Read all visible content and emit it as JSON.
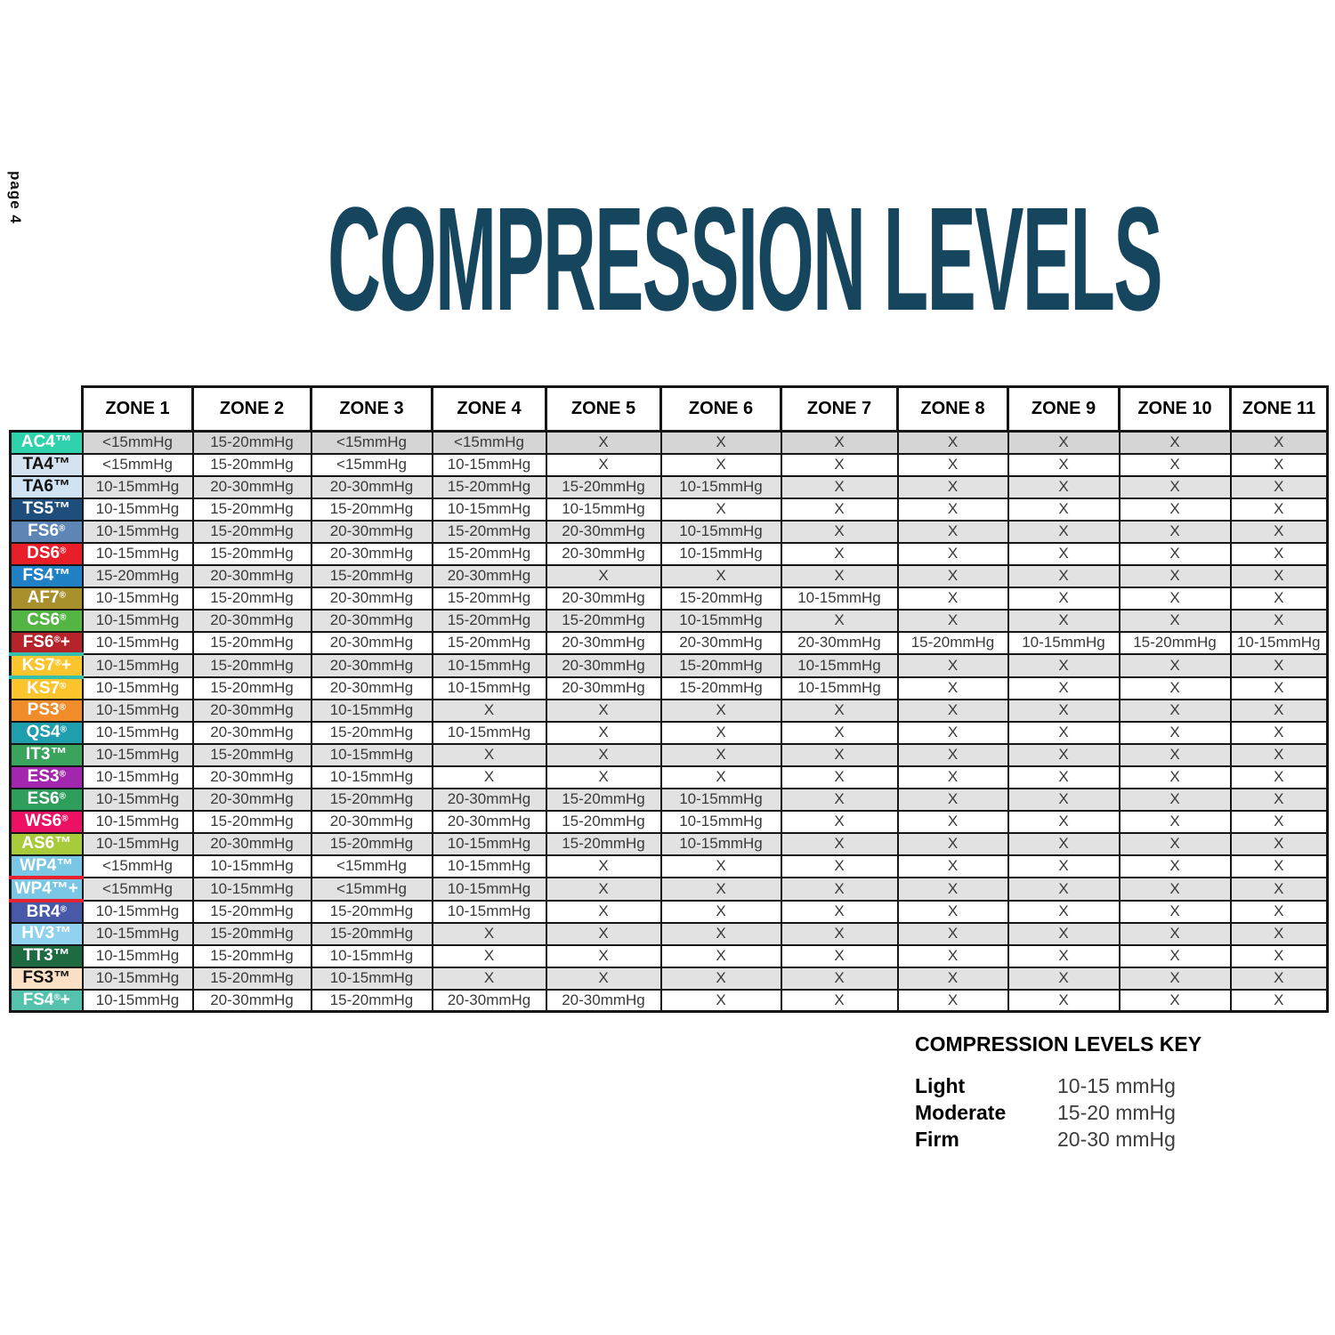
{
  "page_label": "page 4",
  "title": "COMPRESSION LEVELS",
  "colors": {
    "title": "#16455e",
    "table_border": "#161616",
    "stripe": "#e2e2e2",
    "stripe_first_row": "#d5d5d5",
    "divider_red": "#e8212e",
    "divider_teal": "#35c0ad"
  },
  "table": {
    "zone_headers": [
      "ZONE 1",
      "ZONE 2",
      "ZONE 3",
      "ZONE 4",
      "ZONE 5",
      "ZONE 6",
      "ZONE 7",
      "ZONE 8",
      "ZONE 9",
      "ZONE 10",
      "ZONE 11"
    ],
    "rows": [
      {
        "label": "AC4™",
        "bg": "#2ed3ad",
        "fg": "#ffffff",
        "values": [
          "<15mmHg",
          "15-20mmHg",
          "<15mmHg",
          "<15mmHg",
          "X",
          "X",
          "X",
          "X",
          "X",
          "X",
          "X"
        ]
      },
      {
        "label": "TA4™",
        "bg": "#d4e3ef",
        "fg": "#111111",
        "values": [
          "<15mmHg",
          "15-20mmHg",
          "<15mmHg",
          "10-15mmHg",
          "X",
          "X",
          "X",
          "X",
          "X",
          "X",
          "X"
        ]
      },
      {
        "label": "TA6™",
        "bg": "#cfe3f2",
        "fg": "#111111",
        "values": [
          "10-15mmHg",
          "20-30mmHg",
          "20-30mmHg",
          "15-20mmHg",
          "15-20mmHg",
          "10-15mmHg",
          "X",
          "X",
          "X",
          "X",
          "X"
        ]
      },
      {
        "label": "TS5™",
        "bg": "#1d4e7c",
        "fg": "#ffffff",
        "values": [
          "10-15mmHg",
          "15-20mmHg",
          "15-20mmHg",
          "10-15mmHg",
          "10-15mmHg",
          "X",
          "X",
          "X",
          "X",
          "X",
          "X"
        ]
      },
      {
        "label": "FS6®",
        "bg": "#5d85b6",
        "fg": "#ffffff",
        "values": [
          "10-15mmHg",
          "15-20mmHg",
          "20-30mmHg",
          "15-20mmHg",
          "20-30mmHg",
          "10-15mmHg",
          "X",
          "X",
          "X",
          "X",
          "X"
        ]
      },
      {
        "label": "DS6®",
        "bg": "#e81e29",
        "fg": "#ffffff",
        "values": [
          "10-15mmHg",
          "15-20mmHg",
          "20-30mmHg",
          "15-20mmHg",
          "20-30mmHg",
          "10-15mmHg",
          "X",
          "X",
          "X",
          "X",
          "X"
        ]
      },
      {
        "label": "FS4™",
        "bg": "#2280c4",
        "fg": "#ffffff",
        "values": [
          "15-20mmHg",
          "20-30mmHg",
          "15-20mmHg",
          "20-30mmHg",
          "X",
          "X",
          "X",
          "X",
          "X",
          "X",
          "X"
        ]
      },
      {
        "label": "AF7®",
        "bg": "#a8912c",
        "fg": "#ffffff",
        "values": [
          "10-15mmHg",
          "15-20mmHg",
          "20-30mmHg",
          "15-20mmHg",
          "20-30mmHg",
          "15-20mmHg",
          "10-15mmHg",
          "X",
          "X",
          "X",
          "X"
        ]
      },
      {
        "label": "CS6®",
        "bg": "#54b545",
        "fg": "#ffffff",
        "values": [
          "10-15mmHg",
          "20-30mmHg",
          "20-30mmHg",
          "15-20mmHg",
          "15-20mmHg",
          "10-15mmHg",
          "X",
          "X",
          "X",
          "X",
          "X"
        ]
      },
      {
        "label": "FS6®+",
        "bg": "#b5232b",
        "fg": "#ffffff",
        "values": [
          "10-15mmHg",
          "15-20mmHg",
          "20-30mmHg",
          "15-20mmHg",
          "20-30mmHg",
          "20-30mmHg",
          "20-30mmHg",
          "15-20mmHg",
          "10-15mmHg",
          "15-20mmHg",
          "10-15mmHg"
        ]
      },
      {
        "label": "KS7®+",
        "bg": "#fcc52d",
        "fg": "#ffffff",
        "divider_top": "#35c0ad",
        "divider_bottom": "#35c0ad",
        "values": [
          "10-15mmHg",
          "15-20mmHg",
          "20-30mmHg",
          "10-15mmHg",
          "20-30mmHg",
          "15-20mmHg",
          "10-15mmHg",
          "X",
          "X",
          "X",
          "X"
        ]
      },
      {
        "label": "KS7®",
        "bg": "#fcc52d",
        "fg": "#ffffff",
        "values": [
          "10-15mmHg",
          "15-20mmHg",
          "20-30mmHg",
          "10-15mmHg",
          "20-30mmHg",
          "15-20mmHg",
          "10-15mmHg",
          "X",
          "X",
          "X",
          "X"
        ]
      },
      {
        "label": "PS3®",
        "bg": "#f08d2a",
        "fg": "#ffffff",
        "values": [
          "10-15mmHg",
          "20-30mmHg",
          "10-15mmHg",
          "X",
          "X",
          "X",
          "X",
          "X",
          "X",
          "X",
          "X"
        ]
      },
      {
        "label": "QS4®",
        "bg": "#1f9fad",
        "fg": "#ffffff",
        "values": [
          "10-15mmHg",
          "20-30mmHg",
          "15-20mmHg",
          "10-15mmHg",
          "X",
          "X",
          "X",
          "X",
          "X",
          "X",
          "X"
        ]
      },
      {
        "label": "IT3™",
        "bg": "#3aa45c",
        "fg": "#ffffff",
        "values": [
          "10-15mmHg",
          "15-20mmHg",
          "10-15mmHg",
          "X",
          "X",
          "X",
          "X",
          "X",
          "X",
          "X",
          "X"
        ]
      },
      {
        "label": "ES3®",
        "bg": "#a327ae",
        "fg": "#ffffff",
        "values": [
          "10-15mmHg",
          "20-30mmHg",
          "10-15mmHg",
          "X",
          "X",
          "X",
          "X",
          "X",
          "X",
          "X",
          "X"
        ]
      },
      {
        "label": "ES6®",
        "bg": "#2f9e5c",
        "fg": "#ffffff",
        "values": [
          "10-15mmHg",
          "20-30mmHg",
          "15-20mmHg",
          "20-30mmHg",
          "15-20mmHg",
          "10-15mmHg",
          "X",
          "X",
          "X",
          "X",
          "X"
        ]
      },
      {
        "label": "WS6®",
        "bg": "#ed1164",
        "fg": "#ffffff",
        "values": [
          "10-15mmHg",
          "15-20mmHg",
          "20-30mmHg",
          "20-30mmHg",
          "15-20mmHg",
          "10-15mmHg",
          "X",
          "X",
          "X",
          "X",
          "X"
        ]
      },
      {
        "label": "AS6™",
        "bg": "#a7cb3b",
        "fg": "#ffffff",
        "values": [
          "10-15mmHg",
          "20-30mmHg",
          "15-20mmHg",
          "10-15mmHg",
          "15-20mmHg",
          "10-15mmHg",
          "X",
          "X",
          "X",
          "X",
          "X"
        ]
      },
      {
        "label": "WP4™",
        "bg": "#79c7e4",
        "fg": "#ffffff",
        "divider_bottom": "#e8212e",
        "values": [
          "<15mmHg",
          "10-15mmHg",
          "<15mmHg",
          "10-15mmHg",
          "X",
          "X",
          "X",
          "X",
          "X",
          "X",
          "X"
        ]
      },
      {
        "label": "WP4™+",
        "bg": "#79c7e4",
        "fg": "#ffffff",
        "divider_bottom": "#e8212e",
        "values": [
          "<15mmHg",
          "10-15mmHg",
          "<15mmHg",
          "10-15mmHg",
          "X",
          "X",
          "X",
          "X",
          "X",
          "X",
          "X"
        ]
      },
      {
        "label": "BR4®",
        "bg": "#4759a8",
        "fg": "#ffffff",
        "values": [
          "10-15mmHg",
          "15-20mmHg",
          "15-20mmHg",
          "10-15mmHg",
          "X",
          "X",
          "X",
          "X",
          "X",
          "X",
          "X"
        ]
      },
      {
        "label": "HV3™",
        "bg": "#90d2ef",
        "fg": "#ffffff",
        "values": [
          "10-15mmHg",
          "15-20mmHg",
          "15-20mmHg",
          "X",
          "X",
          "X",
          "X",
          "X",
          "X",
          "X",
          "X"
        ]
      },
      {
        "label": "TT3™",
        "bg": "#1e6b42",
        "fg": "#ffffff",
        "values": [
          "10-15mmHg",
          "15-20mmHg",
          "10-15mmHg",
          "X",
          "X",
          "X",
          "X",
          "X",
          "X",
          "X",
          "X"
        ]
      },
      {
        "label": "FS3™",
        "bg": "#fbe0c6",
        "fg": "#111111",
        "values": [
          "10-15mmHg",
          "15-20mmHg",
          "10-15mmHg",
          "X",
          "X",
          "X",
          "X",
          "X",
          "X",
          "X",
          "X"
        ]
      },
      {
        "label": "FS4®+",
        "bg": "#55c2ae",
        "fg": "#ffffff",
        "values": [
          "10-15mmHg",
          "20-30mmHg",
          "15-20mmHg",
          "20-30mmHg",
          "20-30mmHg",
          "X",
          "X",
          "X",
          "X",
          "X",
          "X"
        ]
      }
    ]
  },
  "key": {
    "title": "COMPRESSION LEVELS KEY",
    "entries": [
      {
        "label": "Light",
        "value": "10-15 mmHg"
      },
      {
        "label": "Moderate",
        "value": "15-20 mmHg"
      },
      {
        "label": "Firm",
        "value": "20-30 mmHg"
      }
    ]
  }
}
